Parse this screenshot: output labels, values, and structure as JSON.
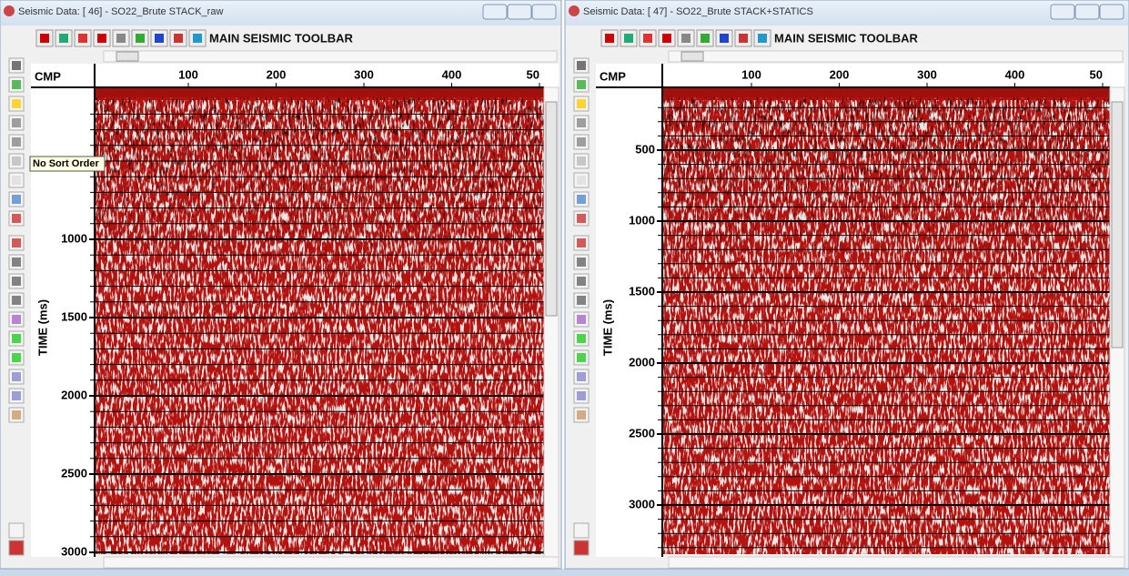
{
  "windows": [
    {
      "title": "Seismic Data: [ 46] - SO22_Brute STACK_raw",
      "toolbar_label": "MAIN SEISMIC TOOLBAR",
      "x_axis_label": "CMP",
      "y_axis_label": "TIME (ms)",
      "x_ticks": [
        "100",
        "200",
        "300",
        "400",
        "50"
      ],
      "y_ticks": [
        "1000",
        "1500",
        "2000",
        "2500",
        "3000"
      ]
    },
    {
      "title": "Seismic Data: [ 47] - SO22_Brute STACK+STATICS",
      "toolbar_label": "MAIN SEISMIC TOOLBAR",
      "x_axis_label": "CMP",
      "y_axis_label": "TIME (ms)",
      "x_ticks": [
        "100",
        "200",
        "300",
        "400",
        "50"
      ],
      "y_ticks": [
        "500",
        "1000",
        "1500",
        "2000",
        "2500",
        "3000"
      ]
    }
  ],
  "tooltip": "No Sort Order"
}
